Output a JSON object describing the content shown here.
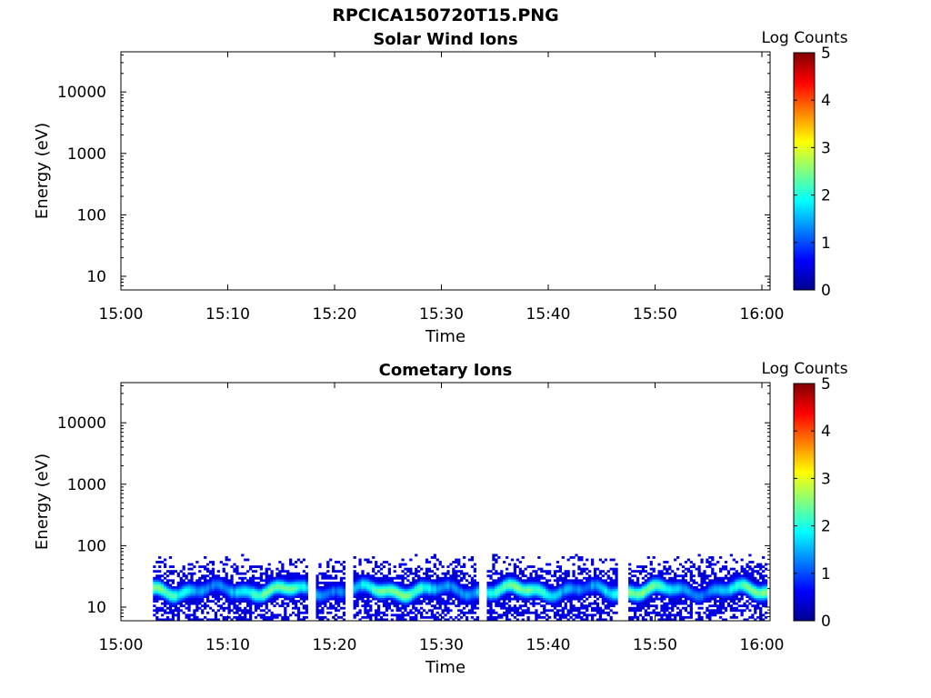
{
  "title": "RPCICA150720T15.PNG",
  "colorbar": {
    "label": "Log Counts",
    "ticks": [
      0,
      1,
      2,
      3,
      4,
      5
    ],
    "colormap": [
      "#00008f",
      "#0000ff",
      "#0080ff",
      "#00ffff",
      "#80ff80",
      "#ffff00",
      "#ff8000",
      "#ff0000",
      "#800000"
    ]
  },
  "chart_data": [
    {
      "type": "heatmap",
      "title": "Solar Wind Ions",
      "xlabel": "Time",
      "ylabel": "Energy (eV)",
      "x_ticks": [
        "15:00",
        "15:10",
        "15:20",
        "15:30",
        "15:40",
        "15:50",
        "16:00"
      ],
      "y_ticks": [
        "10",
        "100",
        "1000",
        "10000"
      ],
      "y_scale": "log",
      "ylim": [
        6,
        45000
      ],
      "zlim": [
        0,
        5
      ],
      "cells": []
    },
    {
      "type": "heatmap",
      "title": "Cometary Ions",
      "xlabel": "Time",
      "ylabel": "Energy (eV)",
      "x_ticks": [
        "15:00",
        "15:10",
        "15:20",
        "15:30",
        "15:40",
        "15:50",
        "16:00"
      ],
      "y_ticks": [
        "10",
        "100",
        "1000",
        "10000"
      ],
      "y_scale": "log",
      "ylim": [
        6,
        45000
      ],
      "zlim": [
        0,
        5
      ],
      "start_minute": 3,
      "end_minute": 60.5,
      "energy_range_ev": [
        6,
        80
      ],
      "peak_energy_ev": 18,
      "peak_log_counts": 2.5
    }
  ]
}
